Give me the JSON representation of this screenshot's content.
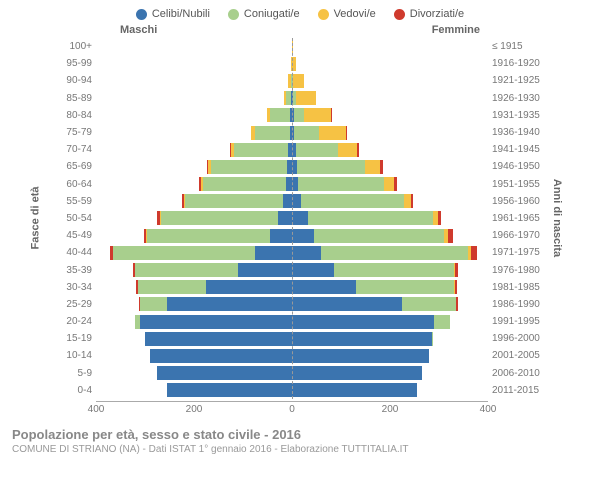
{
  "chart": {
    "type": "population-pyramid",
    "legend": [
      {
        "label": "Celibi/Nubili",
        "color": "#3b74af"
      },
      {
        "label": "Coniugati/e",
        "color": "#a8cf8d"
      },
      {
        "label": "Vedovi/e",
        "color": "#f6c244"
      },
      {
        "label": "Divorziati/e",
        "color": "#cf3a2d"
      }
    ],
    "header": {
      "male": "Maschi",
      "female": "Femmine"
    },
    "ylabel_left": "Fasce di età",
    "ylabel_right": "Anni di nascita",
    "xmax": 400,
    "xticks": [
      400,
      200,
      0,
      200,
      400
    ],
    "background_color": "#ffffff",
    "grid_color": "#eeeeee",
    "rows": [
      {
        "age": "100+",
        "birth": "≤ 1915",
        "m": [
          0,
          0,
          0,
          0
        ],
        "f": [
          0,
          0,
          3,
          0
        ]
      },
      {
        "age": "95-99",
        "birth": "1916-1920",
        "m": [
          0,
          0,
          2,
          0
        ],
        "f": [
          0,
          0,
          8,
          0
        ]
      },
      {
        "age": "90-94",
        "birth": "1921-1925",
        "m": [
          0,
          3,
          5,
          0
        ],
        "f": [
          0,
          2,
          22,
          0
        ]
      },
      {
        "age": "85-89",
        "birth": "1926-1930",
        "m": [
          2,
          10,
          5,
          0
        ],
        "f": [
          2,
          6,
          40,
          0
        ]
      },
      {
        "age": "80-84",
        "birth": "1931-1935",
        "m": [
          4,
          40,
          8,
          0
        ],
        "f": [
          5,
          20,
          55,
          2
        ]
      },
      {
        "age": "75-79",
        "birth": "1936-1940",
        "m": [
          5,
          70,
          8,
          0
        ],
        "f": [
          5,
          50,
          55,
          2
        ]
      },
      {
        "age": "70-74",
        "birth": "1941-1945",
        "m": [
          8,
          110,
          6,
          2
        ],
        "f": [
          8,
          85,
          40,
          4
        ]
      },
      {
        "age": "65-69",
        "birth": "1946-1950",
        "m": [
          10,
          155,
          6,
          2
        ],
        "f": [
          10,
          140,
          30,
          6
        ]
      },
      {
        "age": "60-64",
        "birth": "1951-1955",
        "m": [
          12,
          170,
          4,
          3
        ],
        "f": [
          12,
          175,
          22,
          5
        ]
      },
      {
        "age": "55-59",
        "birth": "1956-1960",
        "m": [
          18,
          200,
          3,
          3
        ],
        "f": [
          18,
          210,
          15,
          5
        ]
      },
      {
        "age": "50-54",
        "birth": "1961-1965",
        "m": [
          28,
          240,
          2,
          5
        ],
        "f": [
          32,
          255,
          10,
          8
        ]
      },
      {
        "age": "45-49",
        "birth": "1966-1970",
        "m": [
          45,
          250,
          2,
          5
        ],
        "f": [
          45,
          265,
          8,
          10
        ]
      },
      {
        "age": "40-44",
        "birth": "1971-1975",
        "m": [
          75,
          290,
          1,
          6
        ],
        "f": [
          60,
          300,
          5,
          12
        ]
      },
      {
        "age": "35-39",
        "birth": "1976-1980",
        "m": [
          110,
          210,
          0,
          4
        ],
        "f": [
          85,
          245,
          3,
          6
        ]
      },
      {
        "age": "30-34",
        "birth": "1981-1985",
        "m": [
          175,
          140,
          0,
          3
        ],
        "f": [
          130,
          200,
          2,
          5
        ]
      },
      {
        "age": "25-29",
        "birth": "1986-1990",
        "m": [
          255,
          55,
          0,
          2
        ],
        "f": [
          225,
          110,
          0,
          3
        ]
      },
      {
        "age": "20-24",
        "birth": "1991-1995",
        "m": [
          310,
          10,
          0,
          0
        ],
        "f": [
          290,
          32,
          0,
          0
        ]
      },
      {
        "age": "15-19",
        "birth": "1996-2000",
        "m": [
          300,
          0,
          0,
          0
        ],
        "f": [
          285,
          2,
          0,
          0
        ]
      },
      {
        "age": "10-14",
        "birth": "2001-2005",
        "m": [
          290,
          0,
          0,
          0
        ],
        "f": [
          280,
          0,
          0,
          0
        ]
      },
      {
        "age": "5-9",
        "birth": "2006-2010",
        "m": [
          275,
          0,
          0,
          0
        ],
        "f": [
          265,
          0,
          0,
          0
        ]
      },
      {
        "age": "0-4",
        "birth": "2011-2015",
        "m": [
          255,
          0,
          0,
          0
        ],
        "f": [
          255,
          0,
          0,
          0
        ]
      }
    ]
  },
  "footer": {
    "title": "Popolazione per età, sesso e stato civile - 2016",
    "subtitle": "COMUNE DI STRIANO (NA) - Dati ISTAT 1° gennaio 2016 - Elaborazione TUTTITALIA.IT"
  }
}
